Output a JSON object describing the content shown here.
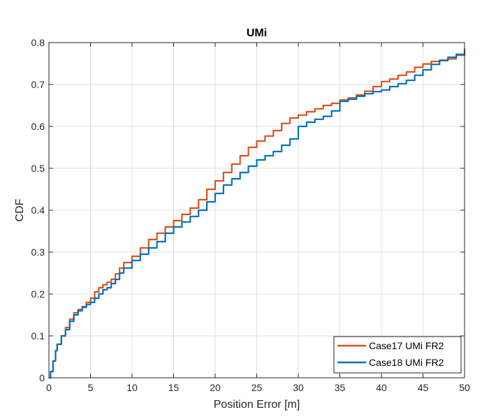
{
  "chart_data": {
    "type": "line",
    "title": "UMi",
    "xlabel": "Position Error [m]",
    "ylabel": "CDF",
    "xlim": [
      0,
      50
    ],
    "ylim": [
      0,
      0.8
    ],
    "xticks": [
      "0",
      "5",
      "10",
      "15",
      "20",
      "25",
      "30",
      "35",
      "40",
      "45",
      "50"
    ],
    "yticks": [
      "0",
      "0.1",
      "0.2",
      "0.3",
      "0.4",
      "0.5",
      "0.6",
      "0.7",
      "0.8"
    ],
    "grid": true,
    "legend_position": "bottom-right",
    "series": [
      {
        "name": "Case17 UMi FR2",
        "color": "#D95319",
        "x": [
          0,
          0.2,
          0.5,
          0.8,
          1,
          1.5,
          2,
          2.5,
          3,
          3.5,
          4,
          4.5,
          5,
          5.5,
          6,
          6.5,
          7,
          7.5,
          8,
          8.5,
          9,
          10,
          11,
          12,
          13,
          14,
          15,
          16,
          17,
          18,
          19,
          20,
          21,
          22,
          23,
          24,
          25,
          26,
          27,
          28,
          29,
          30,
          31,
          32,
          33,
          34,
          35,
          36,
          37,
          38,
          39,
          40,
          41,
          42,
          43,
          44,
          45,
          46,
          47,
          48,
          49,
          50
        ],
        "y": [
          0,
          0.015,
          0.04,
          0.065,
          0.08,
          0.1,
          0.12,
          0.14,
          0.155,
          0.163,
          0.17,
          0.18,
          0.19,
          0.205,
          0.215,
          0.222,
          0.228,
          0.235,
          0.248,
          0.262,
          0.275,
          0.29,
          0.31,
          0.33,
          0.345,
          0.36,
          0.375,
          0.39,
          0.405,
          0.425,
          0.45,
          0.47,
          0.49,
          0.51,
          0.53,
          0.55,
          0.565,
          0.577,
          0.59,
          0.607,
          0.62,
          0.627,
          0.635,
          0.642,
          0.65,
          0.655,
          0.663,
          0.668,
          0.675,
          0.684,
          0.695,
          0.707,
          0.713,
          0.722,
          0.73,
          0.741,
          0.749,
          0.755,
          0.757,
          0.761,
          0.77,
          0.786
        ]
      },
      {
        "name": "Case18 UMi FR2",
        "color": "#0072BD",
        "x": [
          0,
          0.2,
          0.5,
          0.8,
          1,
          1.5,
          2,
          2.5,
          3,
          3.5,
          4,
          4.5,
          5,
          5.5,
          6,
          6.5,
          7,
          7.5,
          8,
          8.5,
          9,
          10,
          11,
          12,
          13,
          14,
          15,
          16,
          17,
          18,
          19,
          20,
          21,
          22,
          23,
          24,
          25,
          26,
          27,
          28,
          29,
          30,
          31,
          32,
          33,
          34,
          35,
          36,
          37,
          38,
          39,
          40,
          41,
          42,
          43,
          44,
          45,
          46,
          47,
          48,
          49,
          50
        ],
        "y": [
          0,
          0.015,
          0.04,
          0.065,
          0.08,
          0.1,
          0.115,
          0.135,
          0.15,
          0.16,
          0.168,
          0.175,
          0.18,
          0.19,
          0.2,
          0.21,
          0.215,
          0.225,
          0.235,
          0.25,
          0.262,
          0.28,
          0.295,
          0.31,
          0.325,
          0.345,
          0.36,
          0.372,
          0.385,
          0.4,
          0.42,
          0.44,
          0.46,
          0.475,
          0.49,
          0.505,
          0.52,
          0.53,
          0.54,
          0.555,
          0.57,
          0.6,
          0.61,
          0.617,
          0.624,
          0.637,
          0.66,
          0.665,
          0.672,
          0.678,
          0.683,
          0.687,
          0.695,
          0.702,
          0.71,
          0.722,
          0.735,
          0.748,
          0.758,
          0.765,
          0.772,
          0.78
        ]
      }
    ]
  }
}
